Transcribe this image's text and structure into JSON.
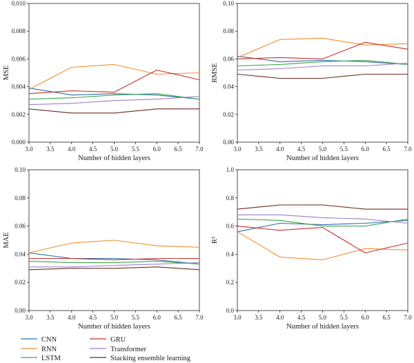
{
  "chart_data": [
    {
      "type": "line",
      "ylabel": "MSE",
      "xlabel": "Number of hidden layers",
      "xlim": [
        3.0,
        7.0
      ],
      "ylim": [
        0,
        0.01
      ],
      "x_ticks": [
        "3.0",
        "3.5",
        "4.0",
        "4.5",
        "5.0",
        "5.5",
        "6.0",
        "6.5",
        "7.0"
      ],
      "y_ticks": [
        "0.000",
        "0.002",
        "0.004",
        "0.006",
        "0.008",
        "0.010"
      ],
      "x": [
        3,
        4,
        5,
        6,
        7
      ],
      "series": [
        {
          "name": "CNN",
          "color": "#2e6fa8",
          "values": [
            0.0039,
            0.0034,
            0.0035,
            0.0034,
            0.0031
          ]
        },
        {
          "name": "RNN",
          "color": "#f28e2b",
          "values": [
            0.0038,
            0.0054,
            0.0056,
            0.0049,
            0.005
          ]
        },
        {
          "name": "LSTM",
          "color": "#3da64b",
          "values": [
            0.0031,
            0.0032,
            0.0034,
            0.0035,
            0.0031
          ]
        },
        {
          "name": "GRU",
          "color": "#c9302c",
          "values": [
            0.0035,
            0.0037,
            0.0036,
            0.0052,
            0.0045
          ]
        },
        {
          "name": "Transformer",
          "color": "#9a7fc9",
          "values": [
            0.0027,
            0.0028,
            0.003,
            0.0031,
            0.0033
          ]
        },
        {
          "name": "Stacking ensemble learning",
          "color": "#6b2a1f",
          "values": [
            0.0024,
            0.0021,
            0.0021,
            0.0024,
            0.0024
          ]
        }
      ]
    },
    {
      "type": "line",
      "ylabel": "RMSE",
      "xlabel": "Number of hidden layers",
      "xlim": [
        3.0,
        7.0
      ],
      "ylim": [
        0,
        0.1
      ],
      "x_ticks": [
        "3.0",
        "3.5",
        "4.0",
        "4.5",
        "5.0",
        "5.5",
        "6.0",
        "6.5",
        "7.0"
      ],
      "y_ticks": [
        "0.00",
        "0.02",
        "0.04",
        "0.06",
        "0.08",
        "0.10"
      ],
      "x": [
        3,
        4,
        5,
        6,
        7
      ],
      "series": [
        {
          "name": "CNN",
          "color": "#2e6fa8",
          "values": [
            0.062,
            0.058,
            0.059,
            0.058,
            0.056
          ]
        },
        {
          "name": "RNN",
          "color": "#f28e2b",
          "values": [
            0.061,
            0.074,
            0.075,
            0.07,
            0.071
          ]
        },
        {
          "name": "LSTM",
          "color": "#3da64b",
          "values": [
            0.055,
            0.056,
            0.058,
            0.059,
            0.056
          ]
        },
        {
          "name": "GRU",
          "color": "#c9302c",
          "values": [
            0.06,
            0.061,
            0.06,
            0.072,
            0.067
          ]
        },
        {
          "name": "Transformer",
          "color": "#9a7fc9",
          "values": [
            0.052,
            0.053,
            0.055,
            0.055,
            0.057
          ]
        },
        {
          "name": "Stacking ensemble learning",
          "color": "#6b2a1f",
          "values": [
            0.049,
            0.046,
            0.046,
            0.049,
            0.049
          ]
        }
      ]
    },
    {
      "type": "line",
      "ylabel": "MAE",
      "xlabel": "Number of hidden layers",
      "xlim": [
        3.0,
        7.0
      ],
      "ylim": [
        0,
        0.1
      ],
      "x_ticks": [
        "3.0",
        "3.5",
        "4.0",
        "4.5",
        "5.0",
        "5.5",
        "6.0",
        "6.5",
        "7.0"
      ],
      "y_ticks": [
        "0.00",
        "0.02",
        "0.04",
        "0.06",
        "0.08",
        "0.10"
      ],
      "x": [
        3,
        4,
        5,
        6,
        7
      ],
      "series": [
        {
          "name": "CNN",
          "color": "#2e6fa8",
          "values": [
            0.041,
            0.037,
            0.037,
            0.036,
            0.033
          ]
        },
        {
          "name": "RNN",
          "color": "#f28e2b",
          "values": [
            0.041,
            0.048,
            0.05,
            0.046,
            0.045
          ]
        },
        {
          "name": "LSTM",
          "color": "#3da64b",
          "values": [
            0.035,
            0.034,
            0.034,
            0.035,
            0.033
          ]
        },
        {
          "name": "GRU",
          "color": "#c9302c",
          "values": [
            0.037,
            0.037,
            0.036,
            0.037,
            0.037
          ]
        },
        {
          "name": "Transformer",
          "color": "#9a7fc9",
          "values": [
            0.031,
            0.031,
            0.032,
            0.033,
            0.034
          ]
        },
        {
          "name": "Stacking ensemble learning",
          "color": "#6b2a1f",
          "values": [
            0.029,
            0.03,
            0.03,
            0.031,
            0.029
          ]
        }
      ]
    },
    {
      "type": "line",
      "ylabel": "R²",
      "xlabel": "Number of hidden layers",
      "xlim": [
        3.0,
        7.0
      ],
      "ylim": [
        0,
        1.0
      ],
      "x_ticks": [
        "3.0",
        "3.5",
        "4.0",
        "4.5",
        "5.0",
        "5.5",
        "6.0",
        "6.5",
        "7.0"
      ],
      "y_ticks": [
        "0.0",
        "0.2",
        "0.4",
        "0.6",
        "0.8",
        "1.0"
      ],
      "x": [
        3,
        4,
        5,
        6,
        7
      ],
      "series": [
        {
          "name": "CNN",
          "color": "#2e6fa8",
          "values": [
            0.56,
            0.62,
            0.61,
            0.62,
            0.64
          ]
        },
        {
          "name": "RNN",
          "color": "#f28e2b",
          "values": [
            0.56,
            0.38,
            0.36,
            0.44,
            0.43
          ]
        },
        {
          "name": "LSTM",
          "color": "#3da64b",
          "values": [
            0.65,
            0.64,
            0.6,
            0.6,
            0.65
          ]
        },
        {
          "name": "GRU",
          "color": "#c9302c",
          "values": [
            0.6,
            0.57,
            0.59,
            0.41,
            0.48
          ]
        },
        {
          "name": "Transformer",
          "color": "#9a7fc9",
          "values": [
            0.68,
            0.68,
            0.66,
            0.65,
            0.62
          ]
        },
        {
          "name": "Stacking ensemble learning",
          "color": "#6b2a1f",
          "values": [
            0.72,
            0.75,
            0.75,
            0.72,
            0.72
          ]
        }
      ]
    }
  ],
  "legend": {
    "placement": "bottom-left",
    "items": [
      {
        "label": "CNN",
        "color": "#2e6fa8"
      },
      {
        "label": "RNN",
        "color": "#f28e2b"
      },
      {
        "label": "LSTM",
        "color": "#3da64b"
      },
      {
        "label": "GRU",
        "color": "#c9302c"
      },
      {
        "label": "Transformer",
        "color": "#9a7fc9"
      },
      {
        "label": "Stacking ensemble learning",
        "color": "#6b2a1f"
      }
    ]
  }
}
